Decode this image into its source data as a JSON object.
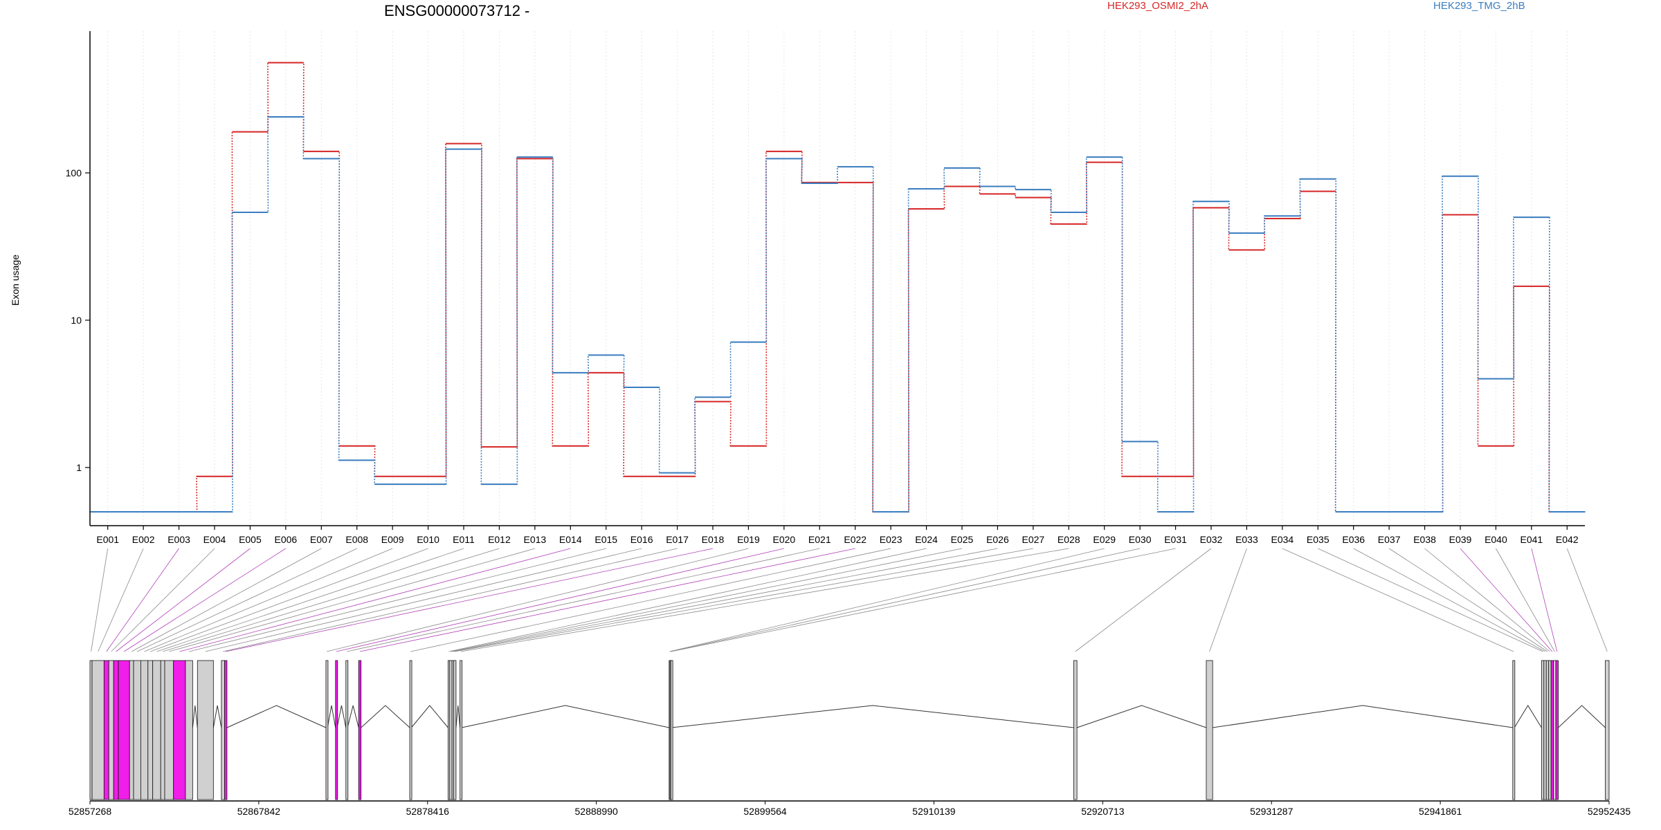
{
  "chart_data": {
    "type": "line",
    "title": "ENSG00000073712 -",
    "ylabel": "Exon usage",
    "yscale": "log",
    "ylim": [
      0.5,
      700
    ],
    "yticks": [
      1,
      10,
      100
    ],
    "ytick_labels": [
      "1",
      "10",
      "100"
    ],
    "categories": [
      "E001",
      "E002",
      "E003",
      "E004",
      "E005",
      "E006",
      "E007",
      "E008",
      "E009",
      "E010",
      "E011",
      "E012",
      "E013",
      "E014",
      "E015",
      "E016",
      "E017",
      "E018",
      "E019",
      "E020",
      "E021",
      "E022",
      "E023",
      "E024",
      "E025",
      "E026",
      "E027",
      "E028",
      "E029",
      "E030",
      "E031",
      "E032",
      "E033",
      "E034",
      "E035",
      "E036",
      "E037",
      "E038",
      "E039",
      "E040",
      "E041",
      "E042"
    ],
    "series": [
      {
        "name": "HEK293_OSMI2_2hA",
        "color": "#d62728",
        "values": [
          0.5,
          0.5,
          0.5,
          0.87,
          190,
          560,
          140,
          1.4,
          0.87,
          0.87,
          158,
          1.38,
          125,
          1.4,
          4.4,
          0.87,
          0.87,
          2.8,
          1.4,
          140,
          86,
          86,
          0.5,
          57,
          81,
          72,
          68,
          45,
          118,
          0.87,
          0.87,
          58,
          30,
          49,
          75,
          0.5,
          0.5,
          0.5,
          52,
          1.4,
          17,
          0.5
        ]
      },
      {
        "name": "HEK293_TMG_2hB",
        "color": "#3a7dbf",
        "values": [
          0.5,
          0.5,
          0.5,
          0.5,
          54,
          240,
          125,
          1.12,
          0.77,
          0.77,
          145,
          0.77,
          128,
          4.4,
          5.8,
          3.5,
          0.92,
          3.0,
          7.1,
          125,
          85,
          110,
          0.5,
          78,
          108,
          81,
          77,
          54,
          128,
          1.5,
          0.5,
          64,
          39,
          51,
          91,
          0.5,
          0.5,
          0.5,
          95,
          4.0,
          50,
          0.5
        ]
      }
    ],
    "exon_usage_flags": [
      false,
      false,
      true,
      false,
      true,
      true,
      false,
      false,
      false,
      false,
      false,
      false,
      false,
      true,
      false,
      false,
      false,
      true,
      false,
      true,
      false,
      true,
      false,
      false,
      false,
      false,
      false,
      false,
      false,
      false,
      false,
      false,
      false,
      false,
      false,
      false,
      false,
      false,
      true,
      false,
      true,
      false
    ],
    "gene_coordinates": {
      "start": 52857268,
      "end": 52952435,
      "tick_labels": [
        "52857268",
        "52867842",
        "52878416",
        "52888990",
        "52899564",
        "52910139",
        "52920713",
        "52931287",
        "52941861",
        "52952435"
      ]
    },
    "exon_genomic_intervals": [
      [
        52857268,
        52857400
      ],
      [
        52857400,
        52858150
      ],
      [
        52858150,
        52858450
      ],
      [
        52858450,
        52858750
      ],
      [
        52858750,
        52859050
      ],
      [
        52859050,
        52859750
      ],
      [
        52859750,
        52860000
      ],
      [
        52860000,
        52860450
      ],
      [
        52860450,
        52860900
      ],
      [
        52860900,
        52861200
      ],
      [
        52861200,
        52861700
      ],
      [
        52861700,
        52861950
      ],
      [
        52861950,
        52862500
      ],
      [
        52862500,
        52863250
      ],
      [
        52863250,
        52863700
      ],
      [
        52864000,
        52865000
      ],
      [
        52865500,
        52865700
      ],
      [
        52865700,
        52865850
      ],
      [
        52872050,
        52872150
      ],
      [
        52872650,
        52872750
      ],
      [
        52873300,
        52873400
      ],
      [
        52874100,
        52874250
      ],
      [
        52877300,
        52877400
      ],
      [
        52879700,
        52879800
      ],
      [
        52879800,
        52879950
      ],
      [
        52879950,
        52880050
      ],
      [
        52880050,
        52880200
      ],
      [
        52880450,
        52880550
      ],
      [
        52893550,
        52893600
      ],
      [
        52893600,
        52893650
      ],
      [
        52893650,
        52893700
      ],
      [
        52918900,
        52919100
      ],
      [
        52927200,
        52927600
      ],
      [
        52946400,
        52946500
      ],
      [
        52948200,
        52948350
      ],
      [
        52948350,
        52948500
      ],
      [
        52948500,
        52948650
      ],
      [
        52948650,
        52948800
      ],
      [
        52948800,
        52948950
      ],
      [
        52948950,
        52949100
      ],
      [
        52949100,
        52949250
      ],
      [
        52952200,
        52952435
      ]
    ]
  },
  "legend": {
    "position": "top",
    "entries": [
      "HEK293_OSMI2_2hA",
      "HEK293_TMG_2hB"
    ]
  },
  "colors": {
    "series1": "#d62728",
    "series2": "#3a7dbf",
    "usage_exon_fill": "#f01ee8",
    "usage_connector": "#b040b8",
    "exon_fill": "#d0d0d0",
    "connector": "#888888",
    "grid": "#e6e6e6"
  }
}
